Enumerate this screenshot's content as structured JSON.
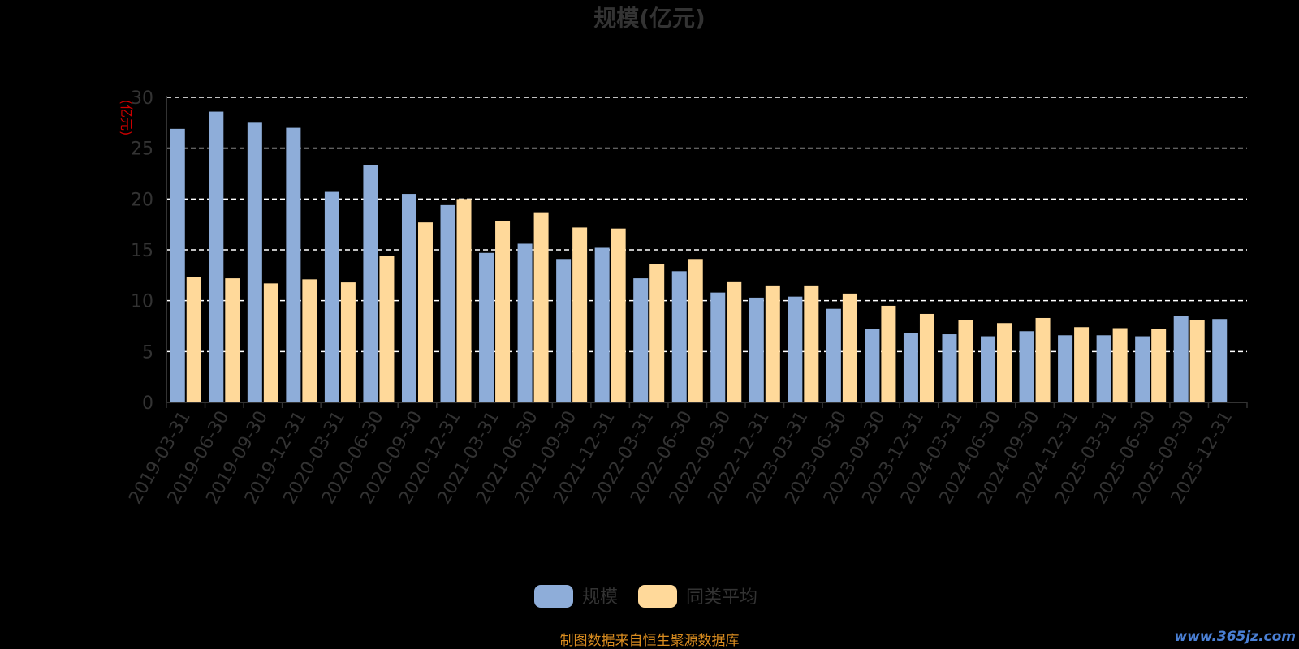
{
  "chart_data": {
    "type": "bar",
    "title": "规模(亿元)",
    "ylabel": "(亿元)",
    "ylim": [
      0,
      30
    ],
    "yticks": [
      0,
      5,
      10,
      15,
      20,
      25,
      30
    ],
    "grid": true,
    "legend_position": "bottom",
    "categories": [
      "2019-03-31",
      "2019-06-30",
      "2019-09-30",
      "2019-12-31",
      "2020-03-31",
      "2020-06-30",
      "2020-09-30",
      "2020-12-31",
      "2021-03-31",
      "2021-06-30",
      "2021-09-30",
      "2021-12-31",
      "2022-03-31",
      "2022-06-30",
      "2022-09-30",
      "2022-12-31",
      "2023-03-31",
      "2023-06-30",
      "2023-09-30",
      "2023-12-31",
      "2024-03-31",
      "2024-06-30",
      "2024-09-30",
      "2024-12-31",
      "2025-03-31",
      "2025-06-30",
      "2025-09-30",
      "2025-12-31"
    ],
    "series": [
      {
        "name": "规模",
        "color": "#8eadd9",
        "values": [
          26.9,
          28.6,
          27.5,
          27.0,
          20.7,
          23.3,
          20.5,
          19.4,
          14.7,
          15.6,
          14.1,
          15.2,
          12.2,
          12.9,
          10.8,
          10.3,
          10.4,
          9.2,
          7.2,
          6.8,
          6.7,
          6.5,
          7.0,
          6.6,
          6.6,
          6.5,
          8.5,
          8.2
        ]
      },
      {
        "name": "同类平均",
        "color": "#ffd99a",
        "values": [
          12.3,
          12.2,
          11.7,
          12.1,
          11.8,
          14.4,
          17.7,
          20.0,
          17.8,
          18.7,
          17.2,
          17.1,
          13.6,
          14.1,
          11.9,
          11.5,
          11.5,
          10.7,
          9.5,
          8.7,
          8.1,
          7.8,
          8.3,
          7.4,
          7.3,
          7.2,
          8.1,
          null
        ]
      }
    ]
  },
  "footer": {
    "source_text": "制图数据来自恒生聚源数据库",
    "watermark": "www.365jz.com"
  }
}
